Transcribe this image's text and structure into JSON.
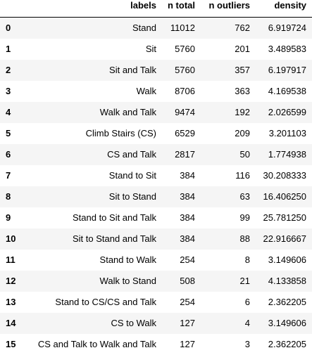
{
  "table": {
    "columns": [
      "labels",
      "n total",
      "n outliers",
      "density"
    ],
    "rows": [
      {
        "index": "0",
        "labels": "Stand",
        "n_total": "11012",
        "n_outliers": "762",
        "density": "6.919724"
      },
      {
        "index": "1",
        "labels": "Sit",
        "n_total": "5760",
        "n_outliers": "201",
        "density": "3.489583"
      },
      {
        "index": "2",
        "labels": "Sit and Talk",
        "n_total": "5760",
        "n_outliers": "357",
        "density": "6.197917"
      },
      {
        "index": "3",
        "labels": "Walk",
        "n_total": "8706",
        "n_outliers": "363",
        "density": "4.169538"
      },
      {
        "index": "4",
        "labels": "Walk and Talk",
        "n_total": "9474",
        "n_outliers": "192",
        "density": "2.026599"
      },
      {
        "index": "5",
        "labels": "Climb Stairs (CS)",
        "n_total": "6529",
        "n_outliers": "209",
        "density": "3.201103"
      },
      {
        "index": "6",
        "labels": "CS and Talk",
        "n_total": "2817",
        "n_outliers": "50",
        "density": "1.774938"
      },
      {
        "index": "7",
        "labels": "Stand to Sit",
        "n_total": "384",
        "n_outliers": "116",
        "density": "30.208333"
      },
      {
        "index": "8",
        "labels": "Sit to Stand",
        "n_total": "384",
        "n_outliers": "63",
        "density": "16.406250"
      },
      {
        "index": "9",
        "labels": "Stand to Sit and Talk",
        "n_total": "384",
        "n_outliers": "99",
        "density": "25.781250"
      },
      {
        "index": "10",
        "labels": "Sit to Stand and Talk",
        "n_total": "384",
        "n_outliers": "88",
        "density": "22.916667"
      },
      {
        "index": "11",
        "labels": "Stand to Walk",
        "n_total": "254",
        "n_outliers": "8",
        "density": "3.149606"
      },
      {
        "index": "12",
        "labels": "Walk to Stand",
        "n_total": "508",
        "n_outliers": "21",
        "density": "4.133858"
      },
      {
        "index": "13",
        "labels": "Stand to CS/CS and Talk",
        "n_total": "254",
        "n_outliers": "6",
        "density": "2.362205"
      },
      {
        "index": "14",
        "labels": "CS to Walk",
        "n_total": "127",
        "n_outliers": "4",
        "density": "3.149606"
      },
      {
        "index": "15",
        "labels": "CS and Talk to Walk and Talk",
        "n_total": "127",
        "n_outliers": "3",
        "density": "2.362205"
      }
    ]
  },
  "colors": {
    "row_odd": "#f5f5f5",
    "row_even": "#ffffff",
    "text": "#000000"
  }
}
